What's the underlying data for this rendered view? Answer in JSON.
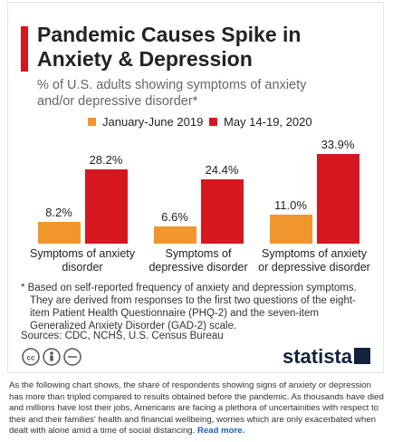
{
  "chart_data": {
    "type": "bar",
    "title": "Pandemic Causes Spike in Anxiety & Depression",
    "subtitle": "% of U.S. adults showing symptoms of anxiety and/or depressive disorder*",
    "categories": [
      "Symptoms of anxiety disorder",
      "Symptoms of depressive disorder",
      "Symptoms of anxiety or depressive disorder"
    ],
    "series": [
      {
        "name": "January-June 2019",
        "color": "#f0962d",
        "values": [
          8.2,
          6.6,
          11.0
        ],
        "value_labels": [
          "8.2%",
          "6.6%",
          "11.0%"
        ]
      },
      {
        "name": "May 14-19, 2020",
        "color": "#d7171f",
        "values": [
          28.2,
          24.4,
          33.9
        ],
        "value_labels": [
          "28.2%",
          "24.4%",
          "33.9%"
        ]
      }
    ],
    "footnote": "* Based on self-reported frequency of anxiety and depression symptoms. They are derived from responses to the first two questions of the eight-item Patient Health Questionnaire (PHQ-2) and the seven-item Generalized Anxiety Disorder (GAD-2) scale.",
    "source": "Sources: CDC, NCHS, U.S. Census Bureau",
    "brand": "statista"
  },
  "description": "As the following chart shows, the share of respondents showing signs of anxiety or depression has more than tripled compared to results obtained before the pandemic. As thousands have died and millions have lost their jobs, Americans are facing a plethora of uncertainities with respect to their and their families' health and financial wellbeing, worries which are only exacerbated when dealt with alone amid a time of social distancing.",
  "read_more": "Read more."
}
